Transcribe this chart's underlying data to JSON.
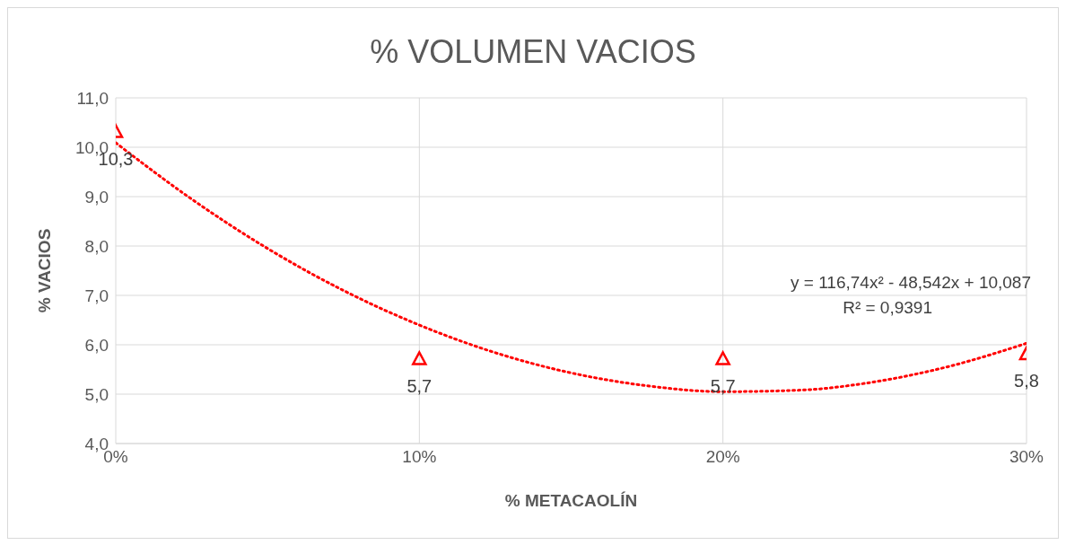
{
  "chart_data": {
    "type": "scatter",
    "title": "% VOLUMEN VACIOS",
    "xlabel": "% METACAOLÍN",
    "ylabel": "% VACIOS",
    "x": [
      0,
      10,
      20,
      30
    ],
    "series": [
      {
        "color": "#ff0000",
        "marker": "triangle",
        "values": [
          10.3,
          5.7,
          5.7,
          5.8
        ],
        "value_labels": [
          "10,3",
          "5,7",
          "5,7",
          "5,8"
        ]
      },
      {
        "type": "line",
        "color": "#ff0000",
        "line_style": "dotted",
        "marker": "none",
        "x": [
          0,
          2.5,
          5,
          7.5,
          10,
          12.5,
          15,
          17.5,
          20,
          22.5,
          25,
          27.5,
          30
        ],
        "values": [
          10.09,
          8.95,
          7.95,
          7.1,
          6.4,
          5.84,
          5.43,
          5.17,
          5.05,
          5.08,
          5.25,
          5.57,
          6.03
        ]
      }
    ],
    "xlim": [
      0,
      30
    ],
    "xticks": [
      {
        "value": 0,
        "label": "0%"
      },
      {
        "value": 10,
        "label": "10%"
      },
      {
        "value": 20,
        "label": "20%"
      },
      {
        "value": 30,
        "label": "30%"
      }
    ],
    "ylim": [
      4,
      11
    ],
    "yticks": [
      {
        "value": 4,
        "label": "4,0"
      },
      {
        "value": 5,
        "label": "5,0"
      },
      {
        "value": 6,
        "label": "6,0"
      },
      {
        "value": 7,
        "label": "7,0"
      },
      {
        "value": 8,
        "label": "8,0"
      },
      {
        "value": 9,
        "label": "9,0"
      },
      {
        "value": 10,
        "label": "10,0"
      },
      {
        "value": 11,
        "label": "11,0"
      }
    ],
    "grid": true,
    "legend": false,
    "annotations": [
      "y = 116,74x² - 48,542x + 10,087",
      "R² = 0,9391"
    ]
  }
}
